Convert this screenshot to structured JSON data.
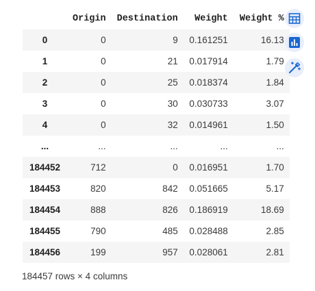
{
  "table": {
    "headers": [
      "",
      "Origin",
      "Destination",
      "Weight",
      "Weight %"
    ],
    "rows": [
      {
        "index": "0",
        "origin": "0",
        "destination": "9",
        "weight": "0.161251",
        "weight_pct": "16.13"
      },
      {
        "index": "1",
        "origin": "0",
        "destination": "21",
        "weight": "0.017914",
        "weight_pct": "1.79"
      },
      {
        "index": "2",
        "origin": "0",
        "destination": "25",
        "weight": "0.018374",
        "weight_pct": "1.84"
      },
      {
        "index": "3",
        "origin": "0",
        "destination": "30",
        "weight": "0.030733",
        "weight_pct": "3.07"
      },
      {
        "index": "4",
        "origin": "0",
        "destination": "32",
        "weight": "0.014961",
        "weight_pct": "1.50"
      },
      {
        "index": "...",
        "origin": "...",
        "destination": "...",
        "weight": "...",
        "weight_pct": "..."
      },
      {
        "index": "184452",
        "origin": "712",
        "destination": "0",
        "weight": "0.016951",
        "weight_pct": "1.70"
      },
      {
        "index": "184453",
        "origin": "820",
        "destination": "842",
        "weight": "0.051665",
        "weight_pct": "5.17"
      },
      {
        "index": "184454",
        "origin": "888",
        "destination": "826",
        "weight": "0.186919",
        "weight_pct": "18.69"
      },
      {
        "index": "184455",
        "origin": "790",
        "destination": "485",
        "weight": "0.028488",
        "weight_pct": "2.85"
      },
      {
        "index": "184456",
        "origin": "199",
        "destination": "957",
        "weight": "0.028061",
        "weight_pct": "2.81"
      }
    ]
  },
  "footer": {
    "summary": "184457 rows × 4 columns"
  },
  "side_toolbar": {
    "buttons": [
      {
        "icon": "table-icon"
      },
      {
        "icon": "bar-chart-icon"
      },
      {
        "icon": "magic-wand-icon"
      }
    ],
    "accent_color": "#1967d2",
    "background_color": "#e8eefb"
  }
}
